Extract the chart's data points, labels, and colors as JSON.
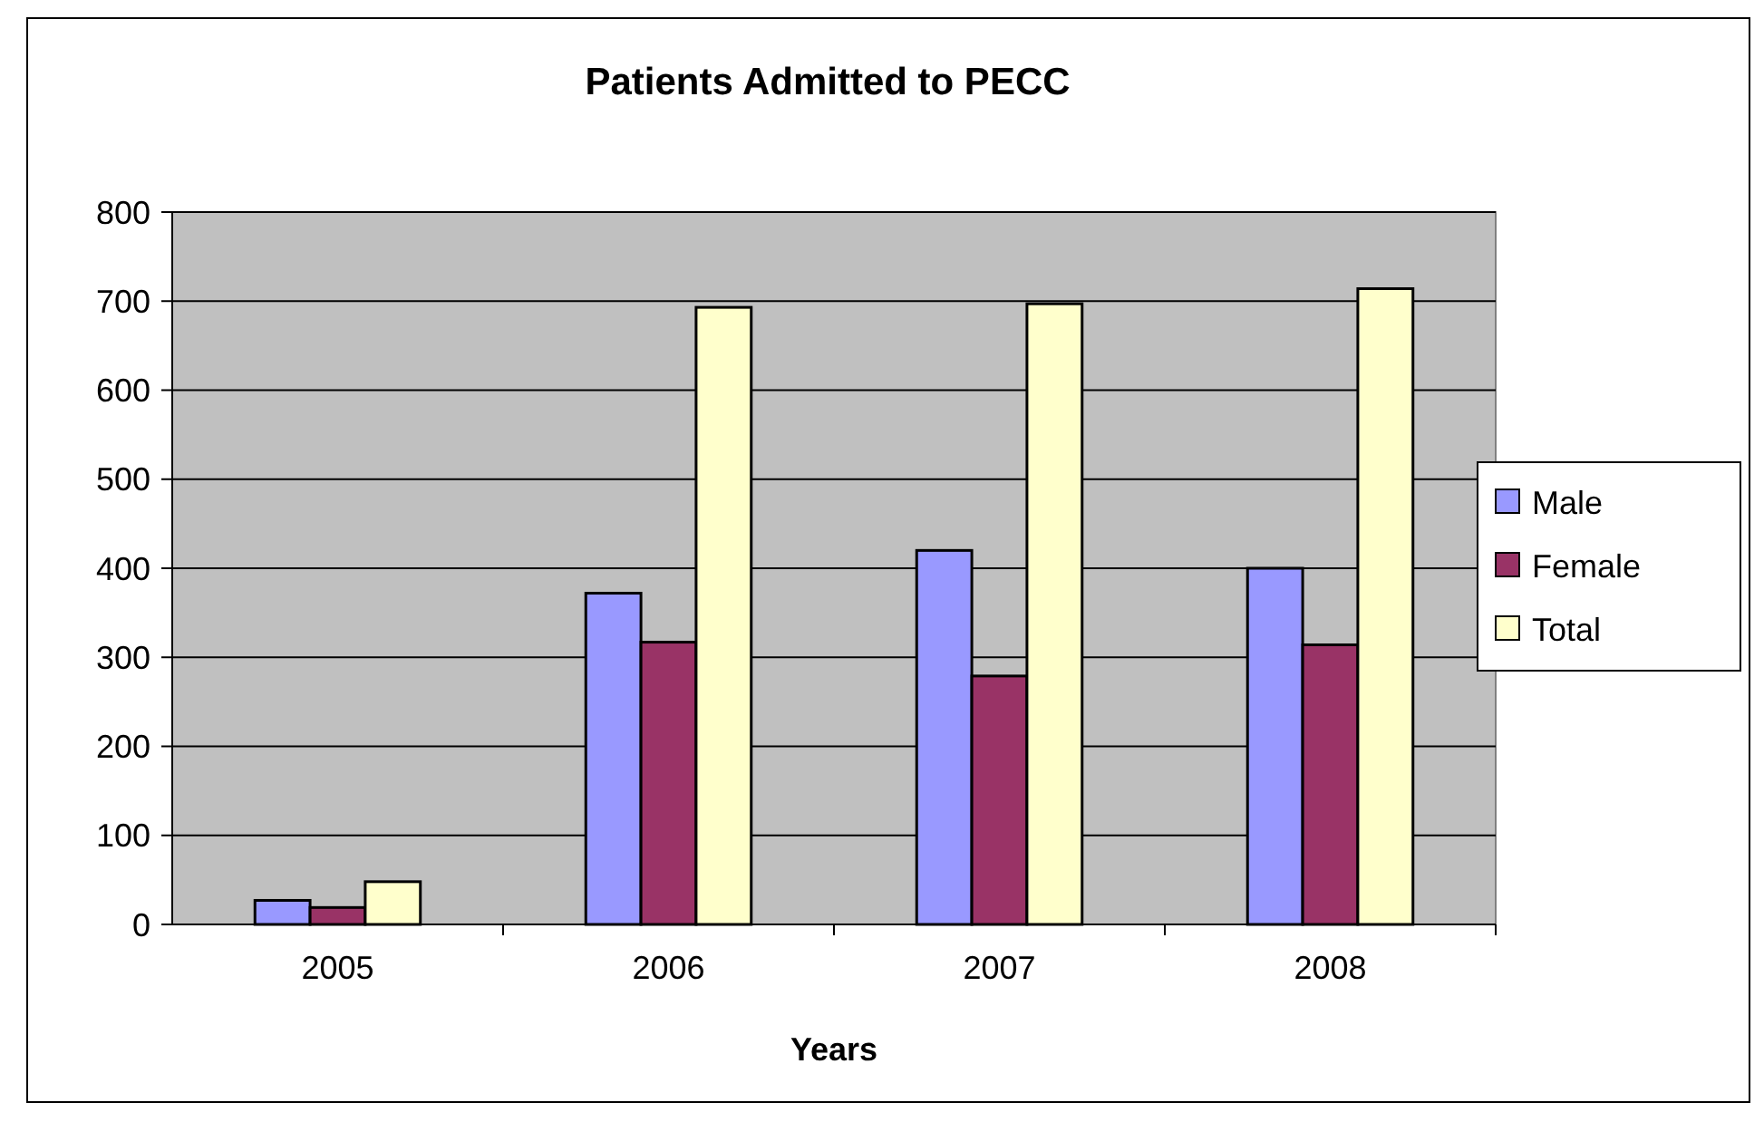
{
  "chart_data": {
    "type": "bar",
    "title": "Patients Admitted to PECC",
    "xlabel": "Years",
    "categories": [
      "2005",
      "2006",
      "2007",
      "2008"
    ],
    "series": [
      {
        "name": "Male",
        "color": "#9999ff",
        "values": [
          27,
          372,
          420,
          400
        ]
      },
      {
        "name": "Female",
        "color": "#993366",
        "values": [
          19,
          317,
          279,
          314
        ]
      },
      {
        "name": "Total",
        "color": "#ffffcc",
        "values": [
          48,
          693,
          697,
          714
        ]
      }
    ],
    "ylim": [
      0,
      800
    ],
    "yticks": [
      0,
      100,
      200,
      300,
      400,
      500,
      600,
      700,
      800
    ],
    "grid": "y",
    "legend": "right"
  }
}
